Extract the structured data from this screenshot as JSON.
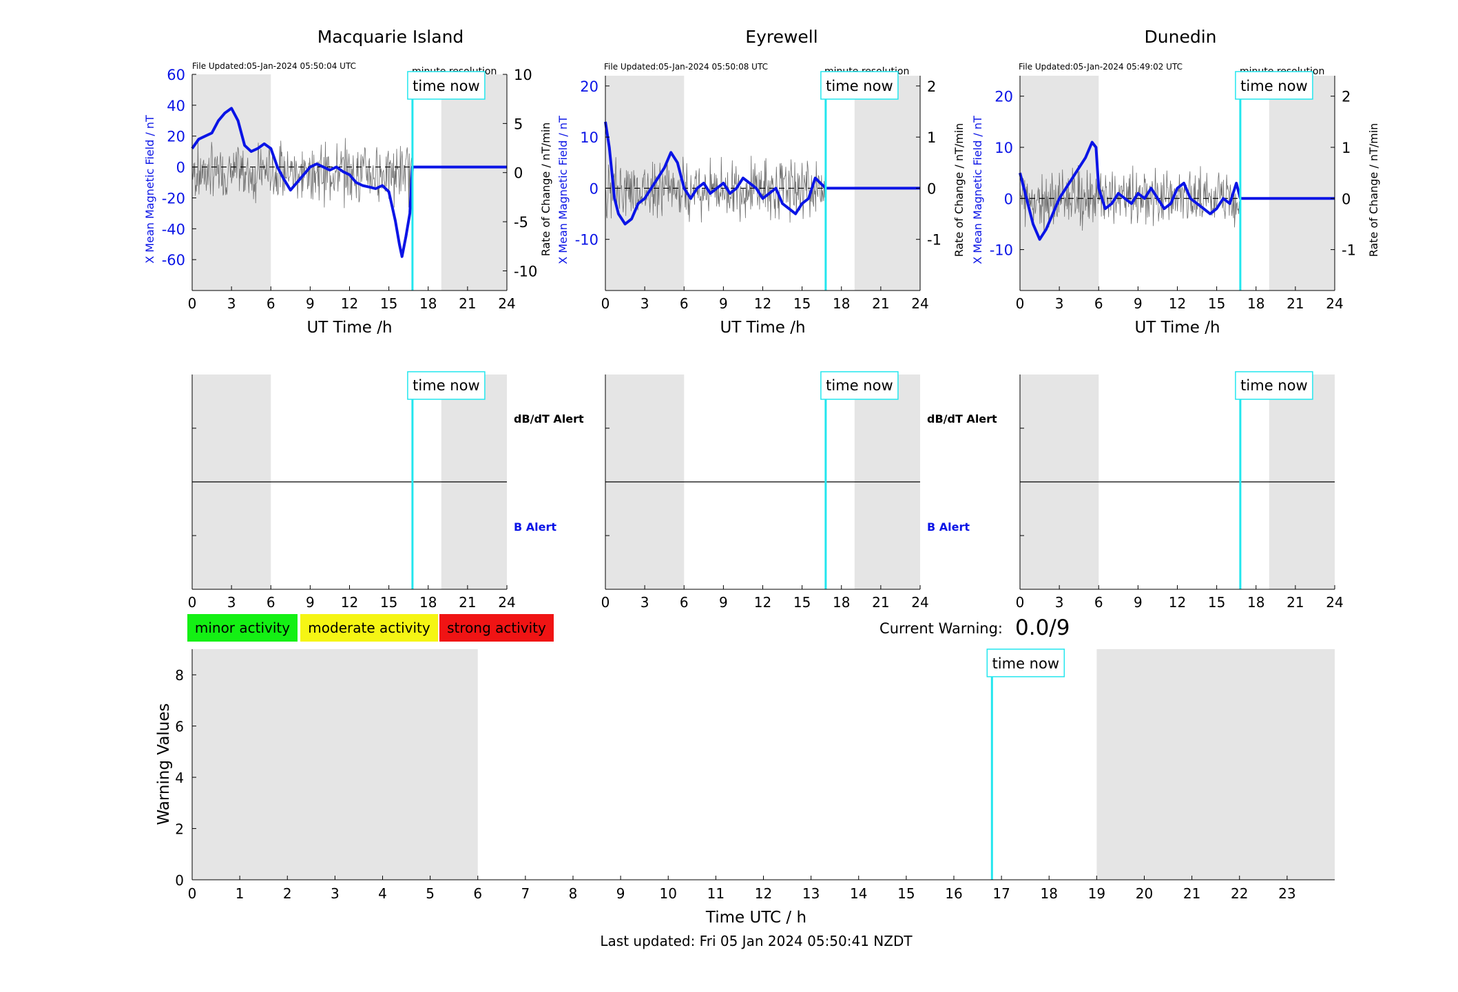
{
  "colors": {
    "b_series": "#0a14e6",
    "rate_series": "#6e6e6e",
    "time_now": "#22e6ee",
    "night_shade": "#e5e5e5",
    "minor": "#14f014",
    "moderate": "#f5f514",
    "strong": "#f01414"
  },
  "panels": [
    {
      "title": "Macquarie Island",
      "file_updated": "File Updated:05-Jan-2024 05:50:04 UTC",
      "resolution": "minute resolution",
      "left_ylabel": "X Mean Magnetic Field / nT",
      "right_ylabel": "Rate of Change / nT/min",
      "left_ticks": [
        "60",
        "40",
        "20",
        "0",
        "-20",
        "-40",
        "-60"
      ],
      "right_ticks": [
        "10",
        "5",
        "0",
        "-5",
        "-10"
      ]
    },
    {
      "title": "Eyrewell",
      "file_updated": "File Updated:05-Jan-2024 05:50:08 UTC",
      "resolution": "minute resolution",
      "left_ylabel": "X Mean Magnetic Field / nT",
      "right_ylabel": "Rate of Change / nT/min",
      "left_ticks": [
        "20",
        "10",
        "0",
        "-10"
      ],
      "right_ticks": [
        "2",
        "1",
        "0",
        "-1"
      ]
    },
    {
      "title": "Dunedin",
      "file_updated": "File Updated:05-Jan-2024 05:49:02 UTC",
      "resolution": "minute resolution",
      "left_ylabel": "X Mean Magnetic Field / nT",
      "right_ylabel": "Rate of Change / nT/min",
      "left_ticks": [
        "20",
        "10",
        "0",
        "-10"
      ],
      "right_ticks": [
        "2",
        "1",
        "0",
        "-1"
      ]
    }
  ],
  "x_tick_labels": [
    "0",
    "3",
    "6",
    "9",
    "12",
    "15",
    "18",
    "21",
    "24"
  ],
  "x_label": "UT Time /h",
  "time_now_label": "time now",
  "alert_labels": {
    "dbdt": "dB/dT Alert",
    "b": "B Alert"
  },
  "legend": {
    "minor": "minor activity",
    "moderate": "moderate activity",
    "strong": "strong activity"
  },
  "current_warning": {
    "label": "Current Warning:",
    "value": "0.0/9"
  },
  "warning_chart": {
    "ylabel": "Warning Values",
    "xlabel": "Time UTC / h",
    "y_ticks": [
      "0",
      "2",
      "4",
      "6",
      "8"
    ],
    "x_ticks": [
      "0",
      "1",
      "2",
      "3",
      "4",
      "5",
      "6",
      "7",
      "8",
      "9",
      "10",
      "11",
      "12",
      "13",
      "14",
      "15",
      "16",
      "17",
      "18",
      "19",
      "20",
      "21",
      "22",
      "23"
    ]
  },
  "footer": "Last updated: Fri 05 Jan 2024 05:50:41 NZDT",
  "chart_data": [
    {
      "type": "line",
      "title": "Macquarie Island",
      "xlim": [
        0,
        24
      ],
      "ylim_left": [
        -80,
        60
      ],
      "ylim_right": [
        -12,
        10
      ],
      "time_now": 16.8,
      "night_shading": [
        [
          0,
          6
        ],
        [
          19,
          24
        ]
      ],
      "series": [
        {
          "name": "X Mean Magnetic Field / nT",
          "x": [
            0,
            0.5,
            1,
            1.5,
            2,
            2.5,
            3,
            3.5,
            4,
            4.5,
            5,
            5.5,
            6,
            6.5,
            7,
            7.5,
            8,
            8.5,
            9,
            9.5,
            10,
            10.5,
            11,
            11.5,
            12,
            12.5,
            13,
            13.5,
            14,
            14.5,
            15,
            15.5,
            15.8,
            16,
            16.3,
            16.6,
            16.8,
            17,
            18,
            20,
            22,
            24
          ],
          "y": [
            12,
            18,
            20,
            22,
            30,
            35,
            38,
            30,
            14,
            10,
            12,
            15,
            12,
            0,
            -8,
            -15,
            -10,
            -5,
            0,
            2,
            0,
            -2,
            0,
            -3,
            -5,
            -10,
            -12,
            -13,
            -14,
            -12,
            -16,
            -35,
            -50,
            -58,
            -45,
            -30,
            0,
            0,
            0,
            0,
            0,
            0
          ]
        }
      ]
    },
    {
      "type": "line",
      "title": "Eyrewell",
      "xlim": [
        0,
        24
      ],
      "ylim_left": [
        -20,
        22
      ],
      "ylim_right": [
        -2,
        2.2
      ],
      "time_now": 16.8,
      "night_shading": [
        [
          0,
          6
        ],
        [
          19,
          24
        ]
      ],
      "series": [
        {
          "name": "X Mean Magnetic Field / nT",
          "x": [
            0,
            0.3,
            0.7,
            1,
            1.5,
            2,
            2.5,
            3,
            3.5,
            4,
            4.5,
            5,
            5.5,
            6,
            6.5,
            7,
            7.5,
            8,
            8.5,
            9,
            9.5,
            10,
            10.5,
            11,
            11.5,
            12,
            12.5,
            13,
            13.5,
            14,
            14.5,
            15,
            15.5,
            16,
            16.8,
            18,
            20,
            24
          ],
          "y": [
            13,
            8,
            -2,
            -5,
            -7,
            -6,
            -3,
            -2,
            0,
            2,
            4,
            7,
            5,
            0,
            -2,
            0,
            1,
            -1,
            0,
            1,
            -1,
            0,
            2,
            1,
            0,
            -2,
            -1,
            0,
            -3,
            -4,
            -5,
            -3,
            -2,
            2,
            0,
            0,
            0,
            0
          ]
        }
      ]
    },
    {
      "type": "line",
      "title": "Dunedin",
      "xlim": [
        0,
        24
      ],
      "ylim_left": [
        -18,
        24
      ],
      "ylim_right": [
        -1.8,
        2.4
      ],
      "time_now": 16.8,
      "night_shading": [
        [
          0,
          6
        ],
        [
          19,
          24
        ]
      ],
      "series": [
        {
          "name": "X Mean Magnetic Field / nT",
          "x": [
            0,
            0.3,
            0.7,
            1,
            1.5,
            2,
            2.5,
            3,
            3.5,
            4,
            4.5,
            5,
            5.5,
            5.8,
            6,
            6.5,
            7,
            7.5,
            8,
            8.5,
            9,
            9.5,
            10,
            10.5,
            11,
            11.5,
            12,
            12.5,
            13,
            13.5,
            14,
            14.5,
            15,
            15.5,
            16,
            16.5,
            16.8,
            18,
            20,
            24
          ],
          "y": [
            5,
            2,
            -2,
            -5,
            -8,
            -6,
            -3,
            0,
            2,
            4,
            6,
            8,
            11,
            10,
            2,
            -2,
            -1,
            1,
            0,
            -1,
            1,
            0,
            2,
            0,
            -2,
            -1,
            2,
            3,
            0,
            -1,
            -2,
            -3,
            -2,
            0,
            -1,
            3,
            0,
            0,
            0,
            0
          ]
        }
      ]
    },
    {
      "type": "line",
      "title": "Warning Values",
      "xlim": [
        0,
        24
      ],
      "ylim": [
        0,
        9
      ],
      "time_now": 16.8,
      "night_shading": [
        [
          0,
          6
        ],
        [
          19,
          24
        ]
      ],
      "series": [
        {
          "name": "Warning Values",
          "x": [],
          "y": []
        }
      ]
    }
  ]
}
